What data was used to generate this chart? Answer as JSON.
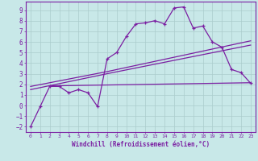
{
  "line1_x": [
    0,
    1,
    2,
    3,
    4,
    5,
    6,
    7,
    8,
    9,
    10,
    11,
    12,
    13,
    14,
    15,
    16,
    17,
    18,
    19,
    20,
    21,
    22,
    23
  ],
  "line1_y": [
    -2.0,
    -0.1,
    1.8,
    1.8,
    1.2,
    1.5,
    1.2,
    -0.1,
    4.4,
    5.0,
    6.5,
    7.7,
    7.8,
    8.0,
    7.7,
    9.2,
    9.3,
    7.3,
    7.5,
    6.0,
    5.5,
    3.4,
    3.1,
    2.1
  ],
  "line2_x": [
    0,
    8,
    23
  ],
  "line2_y": [
    1.8,
    3.2,
    6.1
  ],
  "line3_x": [
    0,
    8,
    23
  ],
  "line3_y": [
    1.5,
    3.0,
    5.7
  ],
  "line4_x": [
    2,
    23
  ],
  "line4_y": [
    1.85,
    2.15
  ],
  "color": "#7B1FA2",
  "bg_color": "#c8e8e8",
  "grid_color": "#aacccc",
  "xlabel": "Windchill (Refroidissement éolien,°C)",
  "xlim": [
    -0.5,
    23.5
  ],
  "ylim": [
    -2.5,
    9.8
  ],
  "xticks": [
    0,
    1,
    2,
    3,
    4,
    5,
    6,
    7,
    8,
    9,
    10,
    11,
    12,
    13,
    14,
    15,
    16,
    17,
    18,
    19,
    20,
    21,
    22,
    23
  ],
  "yticks": [
    -2,
    -1,
    0,
    1,
    2,
    3,
    4,
    5,
    6,
    7,
    8,
    9
  ]
}
